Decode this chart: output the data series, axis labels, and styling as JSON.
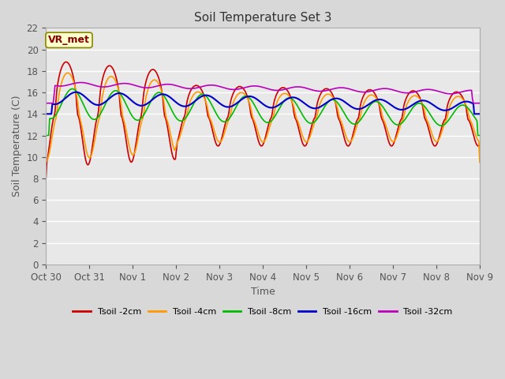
{
  "title": "Soil Temperature Set 3",
  "xlabel": "Time",
  "ylabel": "Soil Temperature (C)",
  "ylim": [
    0,
    22
  ],
  "yticks": [
    0,
    2,
    4,
    6,
    8,
    10,
    12,
    14,
    16,
    18,
    20,
    22
  ],
  "xtick_labels": [
    "Oct 30",
    "Oct 31",
    "Nov 1",
    "Nov 2",
    "Nov 3",
    "Nov 4",
    "Nov 5",
    "Nov 6",
    "Nov 7",
    "Nov 8",
    "Nov 9"
  ],
  "series_colors": [
    "#cc0000",
    "#ff9900",
    "#00bb00",
    "#0000cc",
    "#bb00bb"
  ],
  "series_labels": [
    "Tsoil -2cm",
    "Tsoil -4cm",
    "Tsoil -8cm",
    "Tsoil -16cm",
    "Tsoil -32cm"
  ],
  "bg_color": "#d8d8d8",
  "plot_bg": "#e8e8e8",
  "annotation_text": "VR_met",
  "annotation_bg": "#ffffcc",
  "annotation_border": "#888800",
  "annotation_text_color": "#880000",
  "title_color": "#333333",
  "label_color": "#555555"
}
